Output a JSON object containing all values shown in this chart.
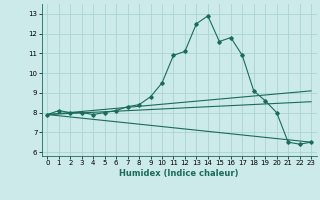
{
  "xlabel": "Humidex (Indice chaleur)",
  "background_color": "#cceaea",
  "grid_color": "#aad4d4",
  "line_color": "#1a6b5a",
  "xlim": [
    -0.5,
    23.5
  ],
  "ylim": [
    5.8,
    13.5
  ],
  "yticks": [
    6,
    7,
    8,
    9,
    10,
    11,
    12,
    13
  ],
  "xticks": [
    0,
    1,
    2,
    3,
    4,
    5,
    6,
    7,
    8,
    9,
    10,
    11,
    12,
    13,
    14,
    15,
    16,
    17,
    18,
    19,
    20,
    21,
    22,
    23
  ],
  "line1_x": [
    0,
    1,
    2,
    3,
    4,
    5,
    6,
    7,
    8,
    9,
    10,
    11,
    12,
    13,
    14,
    15,
    16,
    17,
    18,
    19,
    20,
    21,
    22,
    23
  ],
  "line1_y": [
    7.9,
    8.1,
    8.0,
    8.0,
    7.9,
    8.0,
    8.1,
    8.3,
    8.4,
    8.8,
    9.5,
    10.9,
    11.1,
    12.5,
    12.9,
    11.6,
    11.8,
    10.9,
    9.1,
    8.6,
    8.0,
    6.5,
    6.4,
    6.5
  ],
  "line2_x": [
    0,
    23
  ],
  "line2_y": [
    7.9,
    9.1
  ],
  "line3_x": [
    0,
    23
  ],
  "line3_y": [
    7.9,
    8.55
  ],
  "line4_x": [
    0,
    23
  ],
  "line4_y": [
    7.9,
    6.5
  ]
}
